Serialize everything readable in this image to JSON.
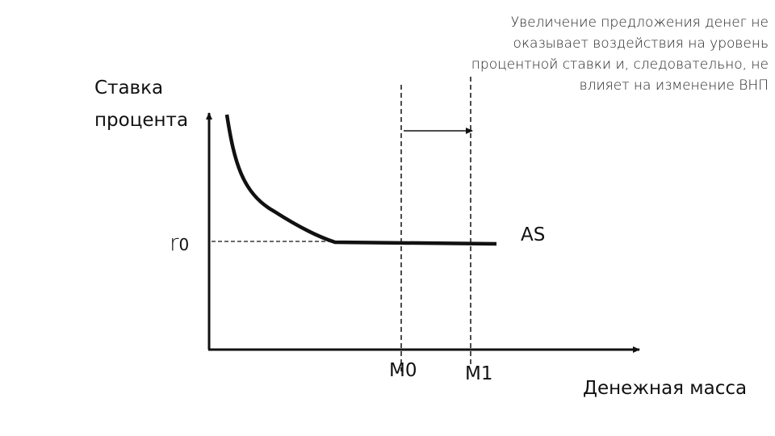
{
  "annotation": [
    "Увеличение предложения денег не",
    "оказывает воздействия на уровень",
    "процентной ставки и, следовательно, не",
    "влияет на изменение ВНП"
  ],
  "y_axis_label": [
    "Ставка",
    "процента"
  ],
  "r_label": {
    "symbol": "r",
    "subscript": "0"
  },
  "curve_label": "AS",
  "m0_label": "M0",
  "m1_label": "M1",
  "x_axis_label": "Денежная масса"
}
